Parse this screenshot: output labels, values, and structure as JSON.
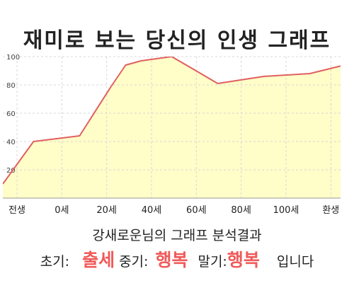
{
  "title": "재미로 보는 당신의 인생 그래프",
  "chart_data": {
    "type": "area",
    "x_tick_labels": [
      "전생",
      "0세",
      "20세",
      "40세",
      "60세",
      "80세",
      "100세",
      "환생"
    ],
    "x": [
      -10,
      0,
      15,
      25,
      30,
      35,
      45,
      60,
      75,
      90,
      105
    ],
    "y": [
      10,
      40,
      44,
      78,
      94,
      97,
      100,
      81,
      86,
      88,
      96
    ],
    "y_ticks": [
      20,
      40,
      60,
      80,
      100
    ],
    "xlim": [
      -10,
      100
    ],
    "ylim": [
      0,
      100
    ],
    "grid": true,
    "colors": {
      "line": "#e06060",
      "fill": "#fffdc8",
      "grid": "#d8d8d8"
    }
  },
  "result": {
    "title": "강새로운님의 그래프 분석결과",
    "early_label": "초기:",
    "early_value": "출세",
    "mid_label": "중기:",
    "mid_value": "행복",
    "late_label": "말기:",
    "late_value": "행복",
    "ending": "입니다"
  }
}
